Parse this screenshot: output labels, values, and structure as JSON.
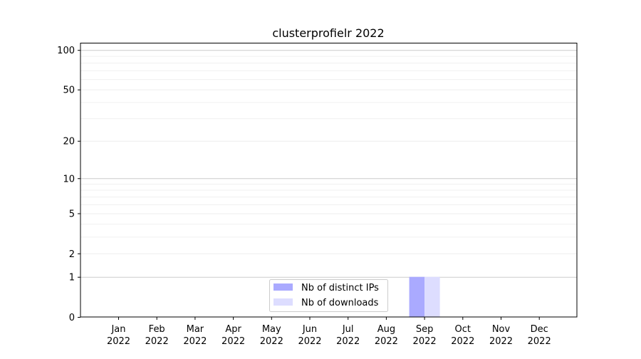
{
  "chart_data": {
    "type": "bar",
    "title": "clusterprofielr 2022",
    "xlabel": "",
    "ylabel": "",
    "yscale": "log(1+y)",
    "ylim": [
      0,
      113
    ],
    "y_ticks": [
      0,
      1,
      2,
      5,
      10,
      20,
      50,
      100
    ],
    "y_tick_labels": [
      "0",
      "1",
      "2",
      "5",
      "10",
      "20",
      "50",
      "100"
    ],
    "y_minor_grid": [
      3,
      4,
      6,
      7,
      8,
      9,
      30,
      40,
      60,
      70,
      80,
      90
    ],
    "grid": true,
    "categories": [
      "Jan\n2022",
      "Feb\n2022",
      "Mar\n2022",
      "Apr\n2022",
      "May\n2022",
      "Jun\n2022",
      "Jul\n2022",
      "Aug\n2022",
      "Sep\n2022",
      "Oct\n2022",
      "Nov\n2022",
      "Dec\n2022"
    ],
    "category_labels": [
      [
        "Jan",
        "2022"
      ],
      [
        "Feb",
        "2022"
      ],
      [
        "Mar",
        "2022"
      ],
      [
        "Apr",
        "2022"
      ],
      [
        "May",
        "2022"
      ],
      [
        "Jun",
        "2022"
      ],
      [
        "Jul",
        "2022"
      ],
      [
        "Aug",
        "2022"
      ],
      [
        "Sep",
        "2022"
      ],
      [
        "Oct",
        "2022"
      ],
      [
        "Nov",
        "2022"
      ],
      [
        "Dec",
        "2022"
      ]
    ],
    "series": [
      {
        "name": "Nb of distinct IPs",
        "color": "#aaaaff",
        "values": [
          0,
          0,
          0,
          0,
          0,
          0,
          0,
          0,
          1,
          0,
          0,
          0
        ]
      },
      {
        "name": "Nb of downloads",
        "color": "#ddddff",
        "values": [
          0,
          0,
          0,
          0,
          0,
          0,
          0,
          0,
          1,
          0,
          0,
          0
        ]
      }
    ],
    "legend_position": "lower center"
  }
}
